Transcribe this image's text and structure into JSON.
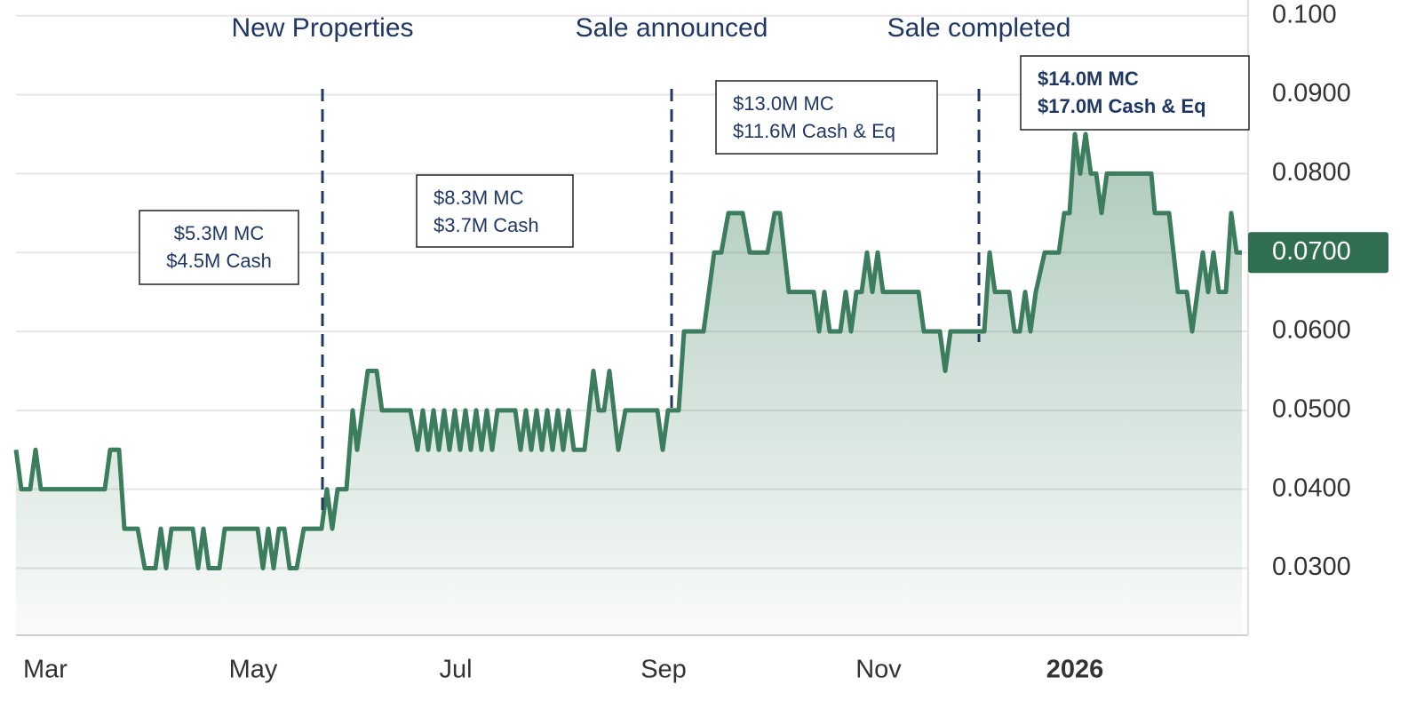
{
  "chart_data": {
    "type": "area-line",
    "color": "#3b7d5c",
    "grid": true,
    "x": [
      0,
      3,
      8,
      11,
      14,
      50,
      53,
      58,
      61,
      68.5,
      72.5,
      78.5,
      81.5,
      84.5,
      87.5,
      99.5,
      102.5,
      105.5,
      108.5,
      114.5,
      117.5,
      136,
      139,
      142,
      145,
      148,
      151,
      154,
      158,
      162,
      172,
      175,
      178,
      181,
      186,
      189.5,
      192,
      195,
      198,
      203,
      206,
      222,
      226,
      229,
      232,
      235,
      238,
      241,
      244,
      247,
      250,
      253,
      256,
      259,
      262,
      265,
      268,
      271,
      281,
      284,
      287,
      290,
      293,
      296,
      299,
      302,
      305,
      308,
      311,
      314,
      320,
      325,
      328,
      331,
      334,
      339,
      343,
      361,
      364,
      367,
      373,
      376,
      387,
      393,
      397,
      401,
      409,
      413,
      423,
      427,
      430,
      435,
      449,
      452,
      455,
      458,
      464,
      467,
      470,
      473,
      476,
      479,
      482,
      485,
      488,
      508,
      511,
      520,
      523,
      526,
      541,
      545,
      548,
      551,
      559,
      562,
      565,
      568,
      571,
      574,
      579,
      587,
      590,
      593,
      596,
      599,
      602,
      605,
      608,
      611,
      614,
      639,
      641,
      649,
      654,
      659,
      662,
      665,
      668,
      671,
      674,
      677,
      681,
      684,
      687,
      690
    ],
    "values": [
      0.045,
      0.04,
      0.04,
      0.045,
      0.04,
      0.04,
      0.045,
      0.045,
      0.035,
      0.035,
      0.03,
      0.03,
      0.035,
      0.03,
      0.035,
      0.035,
      0.03,
      0.035,
      0.03,
      0.03,
      0.035,
      0.035,
      0.03,
      0.035,
      0.03,
      0.035,
      0.035,
      0.03,
      0.03,
      0.035,
      0.035,
      0.04,
      0.035,
      0.04,
      0.04,
      0.05,
      0.045,
      0.05,
      0.055,
      0.055,
      0.05,
      0.05,
      0.045,
      0.05,
      0.045,
      0.05,
      0.045,
      0.05,
      0.045,
      0.05,
      0.045,
      0.05,
      0.045,
      0.05,
      0.045,
      0.05,
      0.045,
      0.05,
      0.05,
      0.045,
      0.05,
      0.045,
      0.05,
      0.045,
      0.05,
      0.045,
      0.05,
      0.045,
      0.05,
      0.045,
      0.045,
      0.055,
      0.05,
      0.05,
      0.055,
      0.045,
      0.05,
      0.05,
      0.045,
      0.05,
      0.05,
      0.06,
      0.06,
      0.07,
      0.07,
      0.075,
      0.075,
      0.07,
      0.07,
      0.075,
      0.075,
      0.065,
      0.065,
      0.06,
      0.065,
      0.06,
      0.06,
      0.065,
      0.06,
      0.065,
      0.065,
      0.07,
      0.065,
      0.07,
      0.065,
      0.065,
      0.06,
      0.06,
      0.055,
      0.06,
      0.06,
      0.06,
      0.07,
      0.065,
      0.065,
      0.06,
      0.06,
      0.065,
      0.06,
      0.065,
      0.07,
      0.07,
      0.075,
      0.075,
      0.085,
      0.08,
      0.085,
      0.08,
      0.08,
      0.075,
      0.08,
      0.08,
      0.075,
      0.075,
      0.065,
      0.065,
      0.06,
      0.065,
      0.07,
      0.065,
      0.07,
      0.065,
      0.065,
      0.075,
      0.07,
      0.07
    ],
    "xlim": [
      0,
      693.5
    ],
    "xticks": [
      {
        "value": 16.5,
        "label": "Mar"
      },
      {
        "value": 133.5,
        "label": "May"
      },
      {
        "value": 247.5,
        "label": "Jul"
      },
      {
        "value": 364.5,
        "label": "Sep"
      },
      {
        "value": 485.5,
        "label": "Nov"
      },
      {
        "value": 596,
        "label": "2026",
        "bold": true
      }
    ],
    "ylim": [
      0.0215,
      0.102
    ],
    "yticks": [
      {
        "value": 0.03,
        "label": "0.0300"
      },
      {
        "value": 0.04,
        "label": "0.0400"
      },
      {
        "value": 0.05,
        "label": "0.0500"
      },
      {
        "value": 0.06,
        "label": "0.0600"
      },
      {
        "value": 0.07,
        "label": "0.0700"
      },
      {
        "value": 0.08,
        "label": "0.0800"
      },
      {
        "value": 0.09,
        "label": "0.0900"
      },
      {
        "value": 0.1,
        "label": "0.100"
      }
    ],
    "last_price": {
      "value": 0.07,
      "label": "0.0700"
    },
    "events": [
      {
        "x": 172.5,
        "label": "New Properties"
      },
      {
        "x": 369,
        "label": "Sale announced"
      },
      {
        "x": 542,
        "label": "Sale completed"
      }
    ],
    "annotations": [
      {
        "lines": [
          "$5.3M MC",
          "$4.5M Cash"
        ]
      },
      {
        "lines": [
          "$8.3M MC",
          "$3.7M Cash"
        ]
      },
      {
        "lines": [
          "$13.0M MC",
          "$11.6M Cash & Eq"
        ]
      },
      {
        "lines": [
          "$14.0M MC",
          "$17.0M Cash & Eq"
        ],
        "bold": true
      }
    ]
  }
}
